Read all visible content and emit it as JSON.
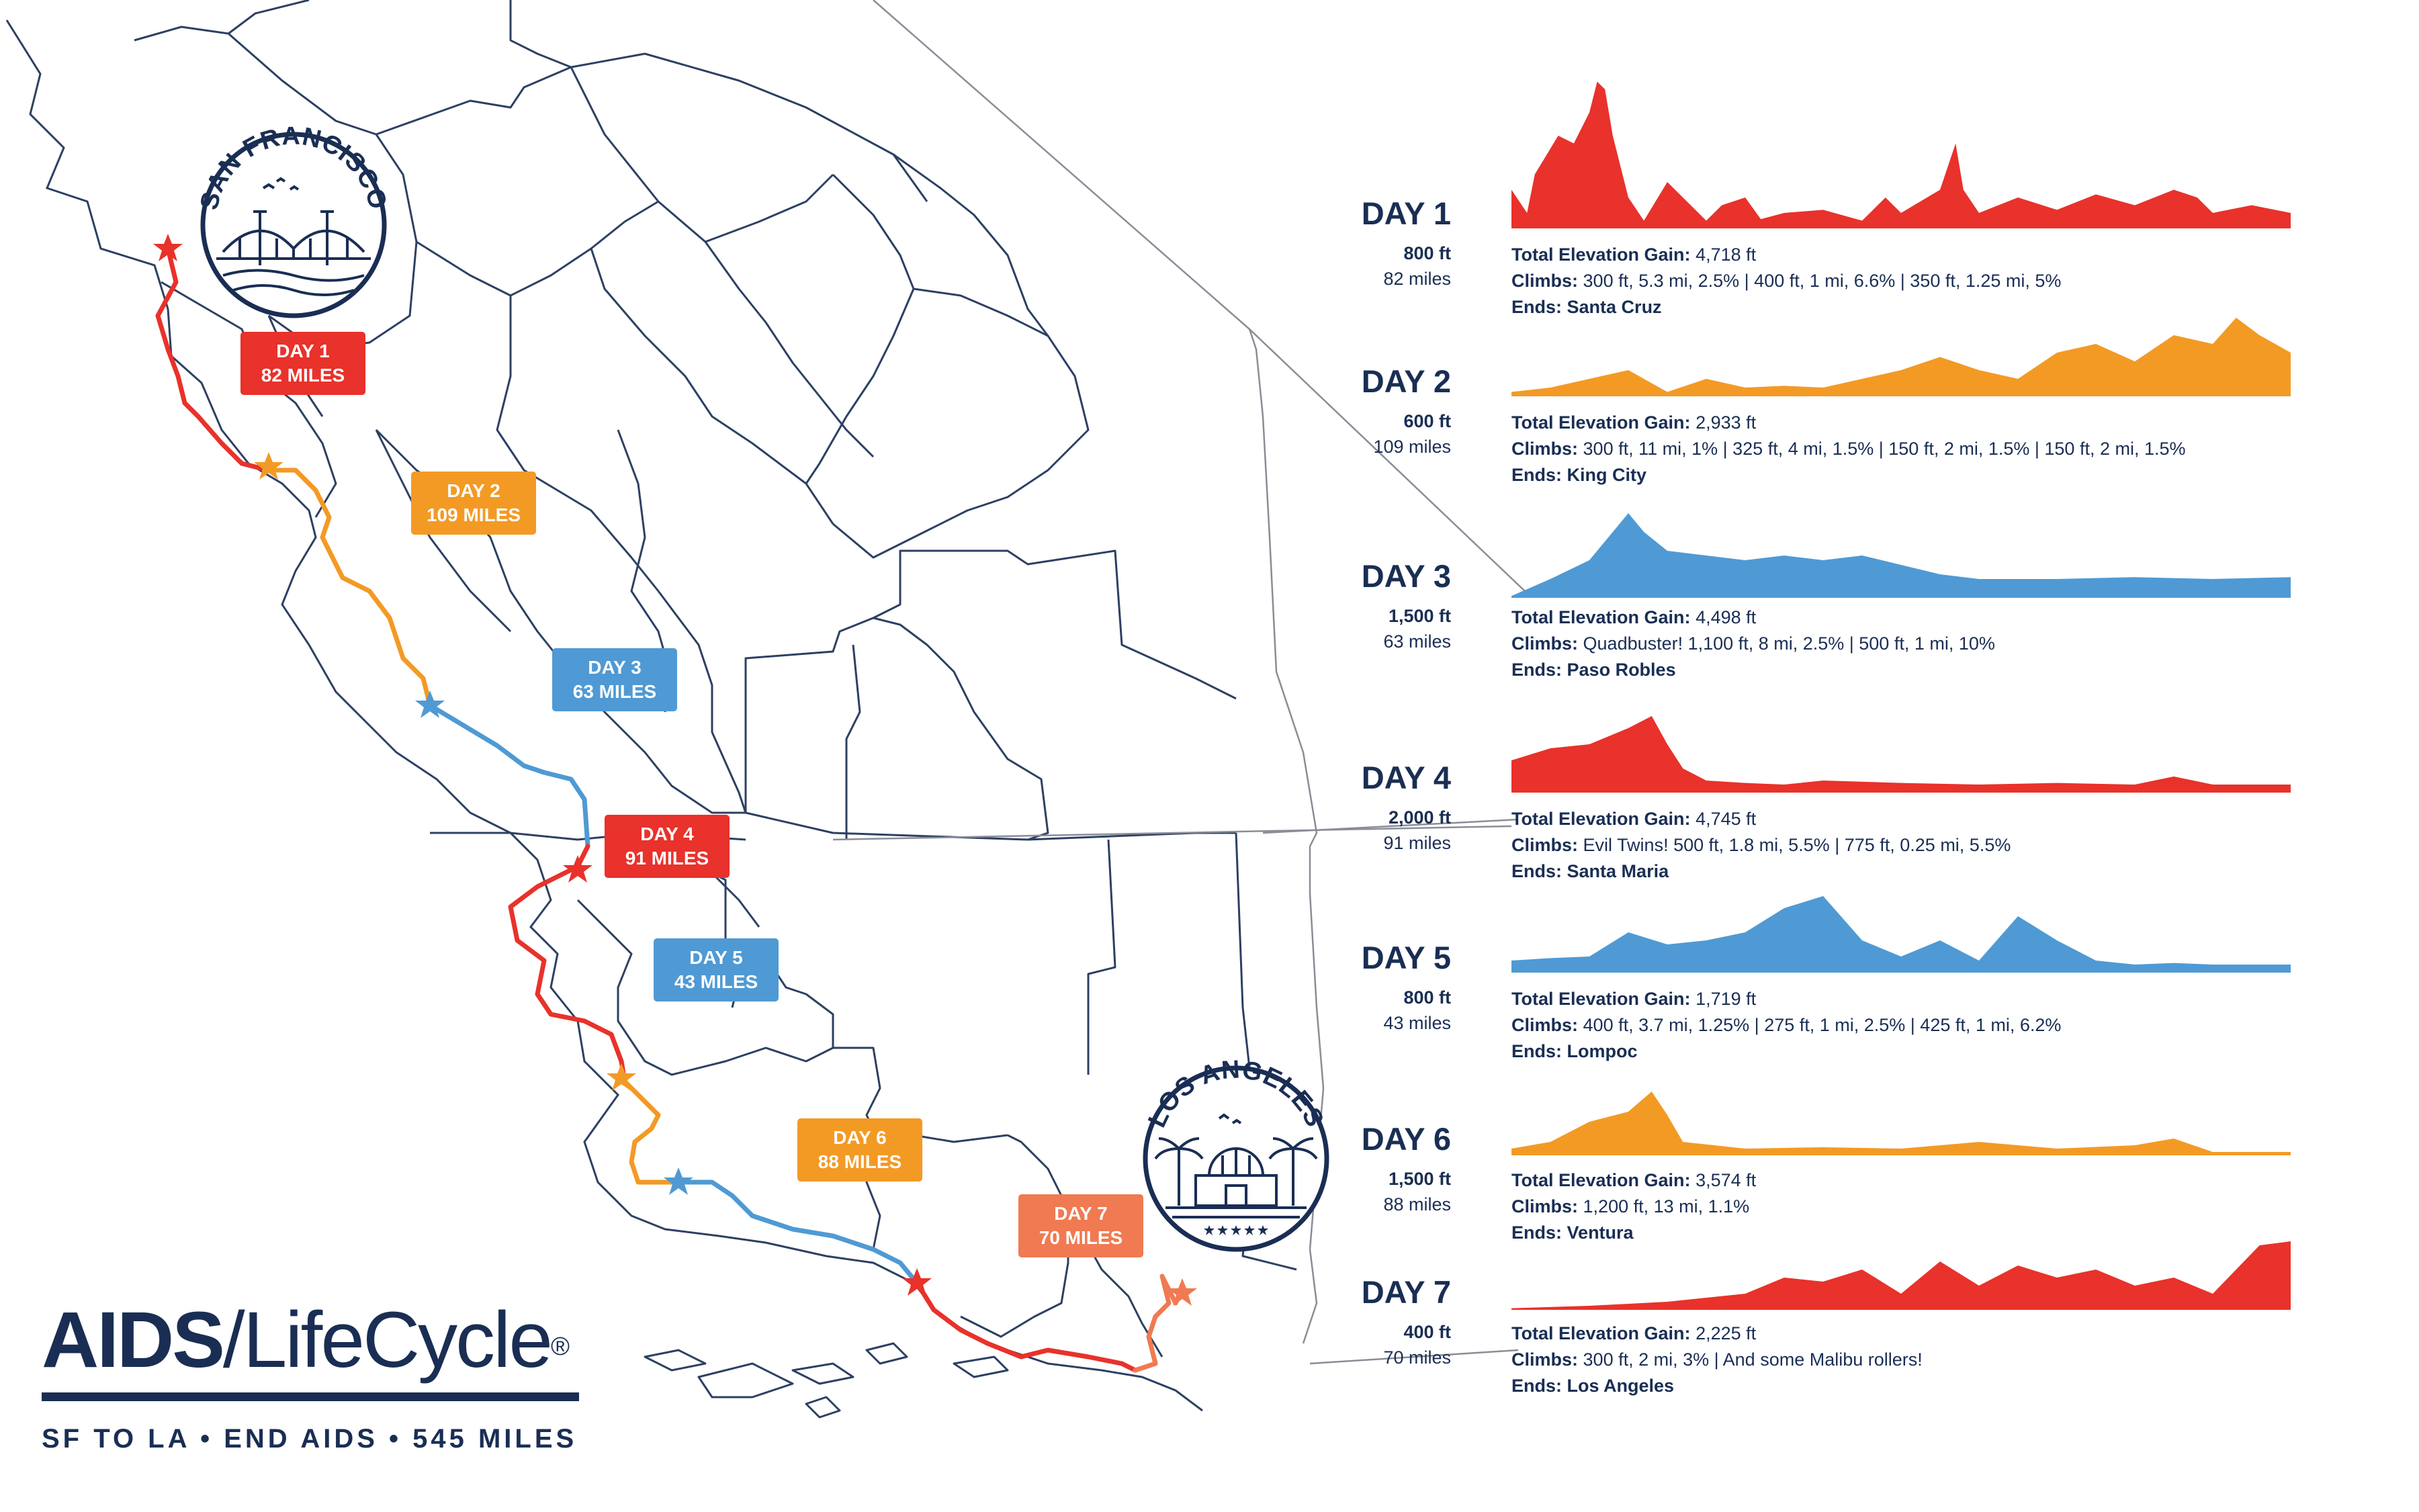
{
  "brand": {
    "name_bold": "AIDS",
    "name_slash": "/",
    "name_light": "LifeCycle",
    "registered": "®",
    "tagline": "SF TO LA • END AIDS • 545 MILES"
  },
  "badges": {
    "sf": "SAN FRANCISCO",
    "la": "LOS ANGELES"
  },
  "colors": {
    "navy": "#1a2e54",
    "red": "#e8322b",
    "orange": "#f39a25",
    "blue": "#4f9ad4",
    "salmon": "#f07a52"
  },
  "map_labels": [
    {
      "day": "DAY 1",
      "miles": "82 MILES",
      "color": "#e8322b"
    },
    {
      "day": "DAY 2",
      "miles": "109 MILES",
      "color": "#f39a25"
    },
    {
      "day": "DAY 3",
      "miles": "63 MILES",
      "color": "#4f9ad4"
    },
    {
      "day": "DAY 4",
      "miles": "91 MILES",
      "color": "#e8322b"
    },
    {
      "day": "DAY 5",
      "miles": "43 MILES",
      "color": "#4f9ad4"
    },
    {
      "day": "DAY 6",
      "miles": "88 MILES",
      "color": "#f39a25"
    },
    {
      "day": "DAY 7",
      "miles": "70 MILES",
      "color": "#f07a52"
    }
  ],
  "days": [
    {
      "title": "DAY 1",
      "ft": "800 ft",
      "miles": "82 miles",
      "gain_label": "Total Elevation Gain:",
      "gain": "4,718 ft",
      "climbs_label": "Climbs:",
      "climbs": "300 ft, 5.3 mi, 2.5%   |   400 ft, 1 mi, 6.6%   |   350 ft, 1.25 mi, 5%",
      "ends_label": "Ends:",
      "ends": "Santa Cruz",
      "color": "#e8322b"
    },
    {
      "title": "DAY 2",
      "ft": "600 ft",
      "miles": "109 miles",
      "gain_label": "Total Elevation Gain:",
      "gain": "2,933 ft",
      "climbs_label": "Climbs:",
      "climbs": "300 ft, 11 mi, 1%   |   325 ft, 4 mi, 1.5%   |   150 ft, 2 mi, 1.5%   |   150 ft, 2 mi, 1.5%",
      "ends_label": "Ends:",
      "ends": "King City",
      "color": "#f39a25"
    },
    {
      "title": "DAY 3",
      "ft": "1,500 ft",
      "miles": "63 miles",
      "gain_label": "Total Elevation Gain:",
      "gain": "4,498 ft",
      "climbs_label": "Climbs:",
      "climbs": "Quadbuster!   1,100 ft, 8 mi, 2.5%   |   500 ft, 1 mi, 10%",
      "ends_label": "Ends:",
      "ends": "Paso Robles",
      "color": "#4f9ad4"
    },
    {
      "title": "DAY 4",
      "ft": "2,000 ft",
      "miles": "91 miles",
      "gain_label": "Total Elevation Gain:",
      "gain": "4,745 ft",
      "climbs_label": "Climbs:",
      "climbs": "Evil Twins!   500 ft, 1.8 mi, 5.5%   |   775 ft, 0.25 mi, 5.5%",
      "ends_label": "Ends:",
      "ends": "Santa Maria",
      "color": "#e8322b"
    },
    {
      "title": "DAY 5",
      "ft": "800 ft",
      "miles": "43 miles",
      "gain_label": "Total Elevation Gain:",
      "gain": "1,719 ft",
      "climbs_label": "Climbs:",
      "climbs": "400 ft, 3.7 mi, 1.25%   |   275 ft, 1 mi, 2.5%   |   425 ft, 1 mi, 6.2%",
      "ends_label": "Ends:",
      "ends": "Lompoc",
      "color": "#4f9ad4"
    },
    {
      "title": "DAY 6",
      "ft": "1,500 ft",
      "miles": "88 miles",
      "gain_label": "Total Elevation Gain:",
      "gain": "3,574 ft",
      "climbs_label": "Climbs:",
      "climbs": "1,200 ft, 13 mi, 1.1%",
      "ends_label": "Ends:",
      "ends": "Ventura",
      "color": "#f39a25"
    },
    {
      "title": "DAY 7",
      "ft": "400 ft",
      "miles": "70 miles",
      "gain_label": "Total Elevation Gain:",
      "gain": "2,225 ft",
      "climbs_label": "Climbs:",
      "climbs": "300 ft, 2 mi, 3%   |   And some Malibu rollers!",
      "ends_label": "Ends:",
      "ends": "Los Angeles",
      "color": "#e8322b"
    }
  ]
}
